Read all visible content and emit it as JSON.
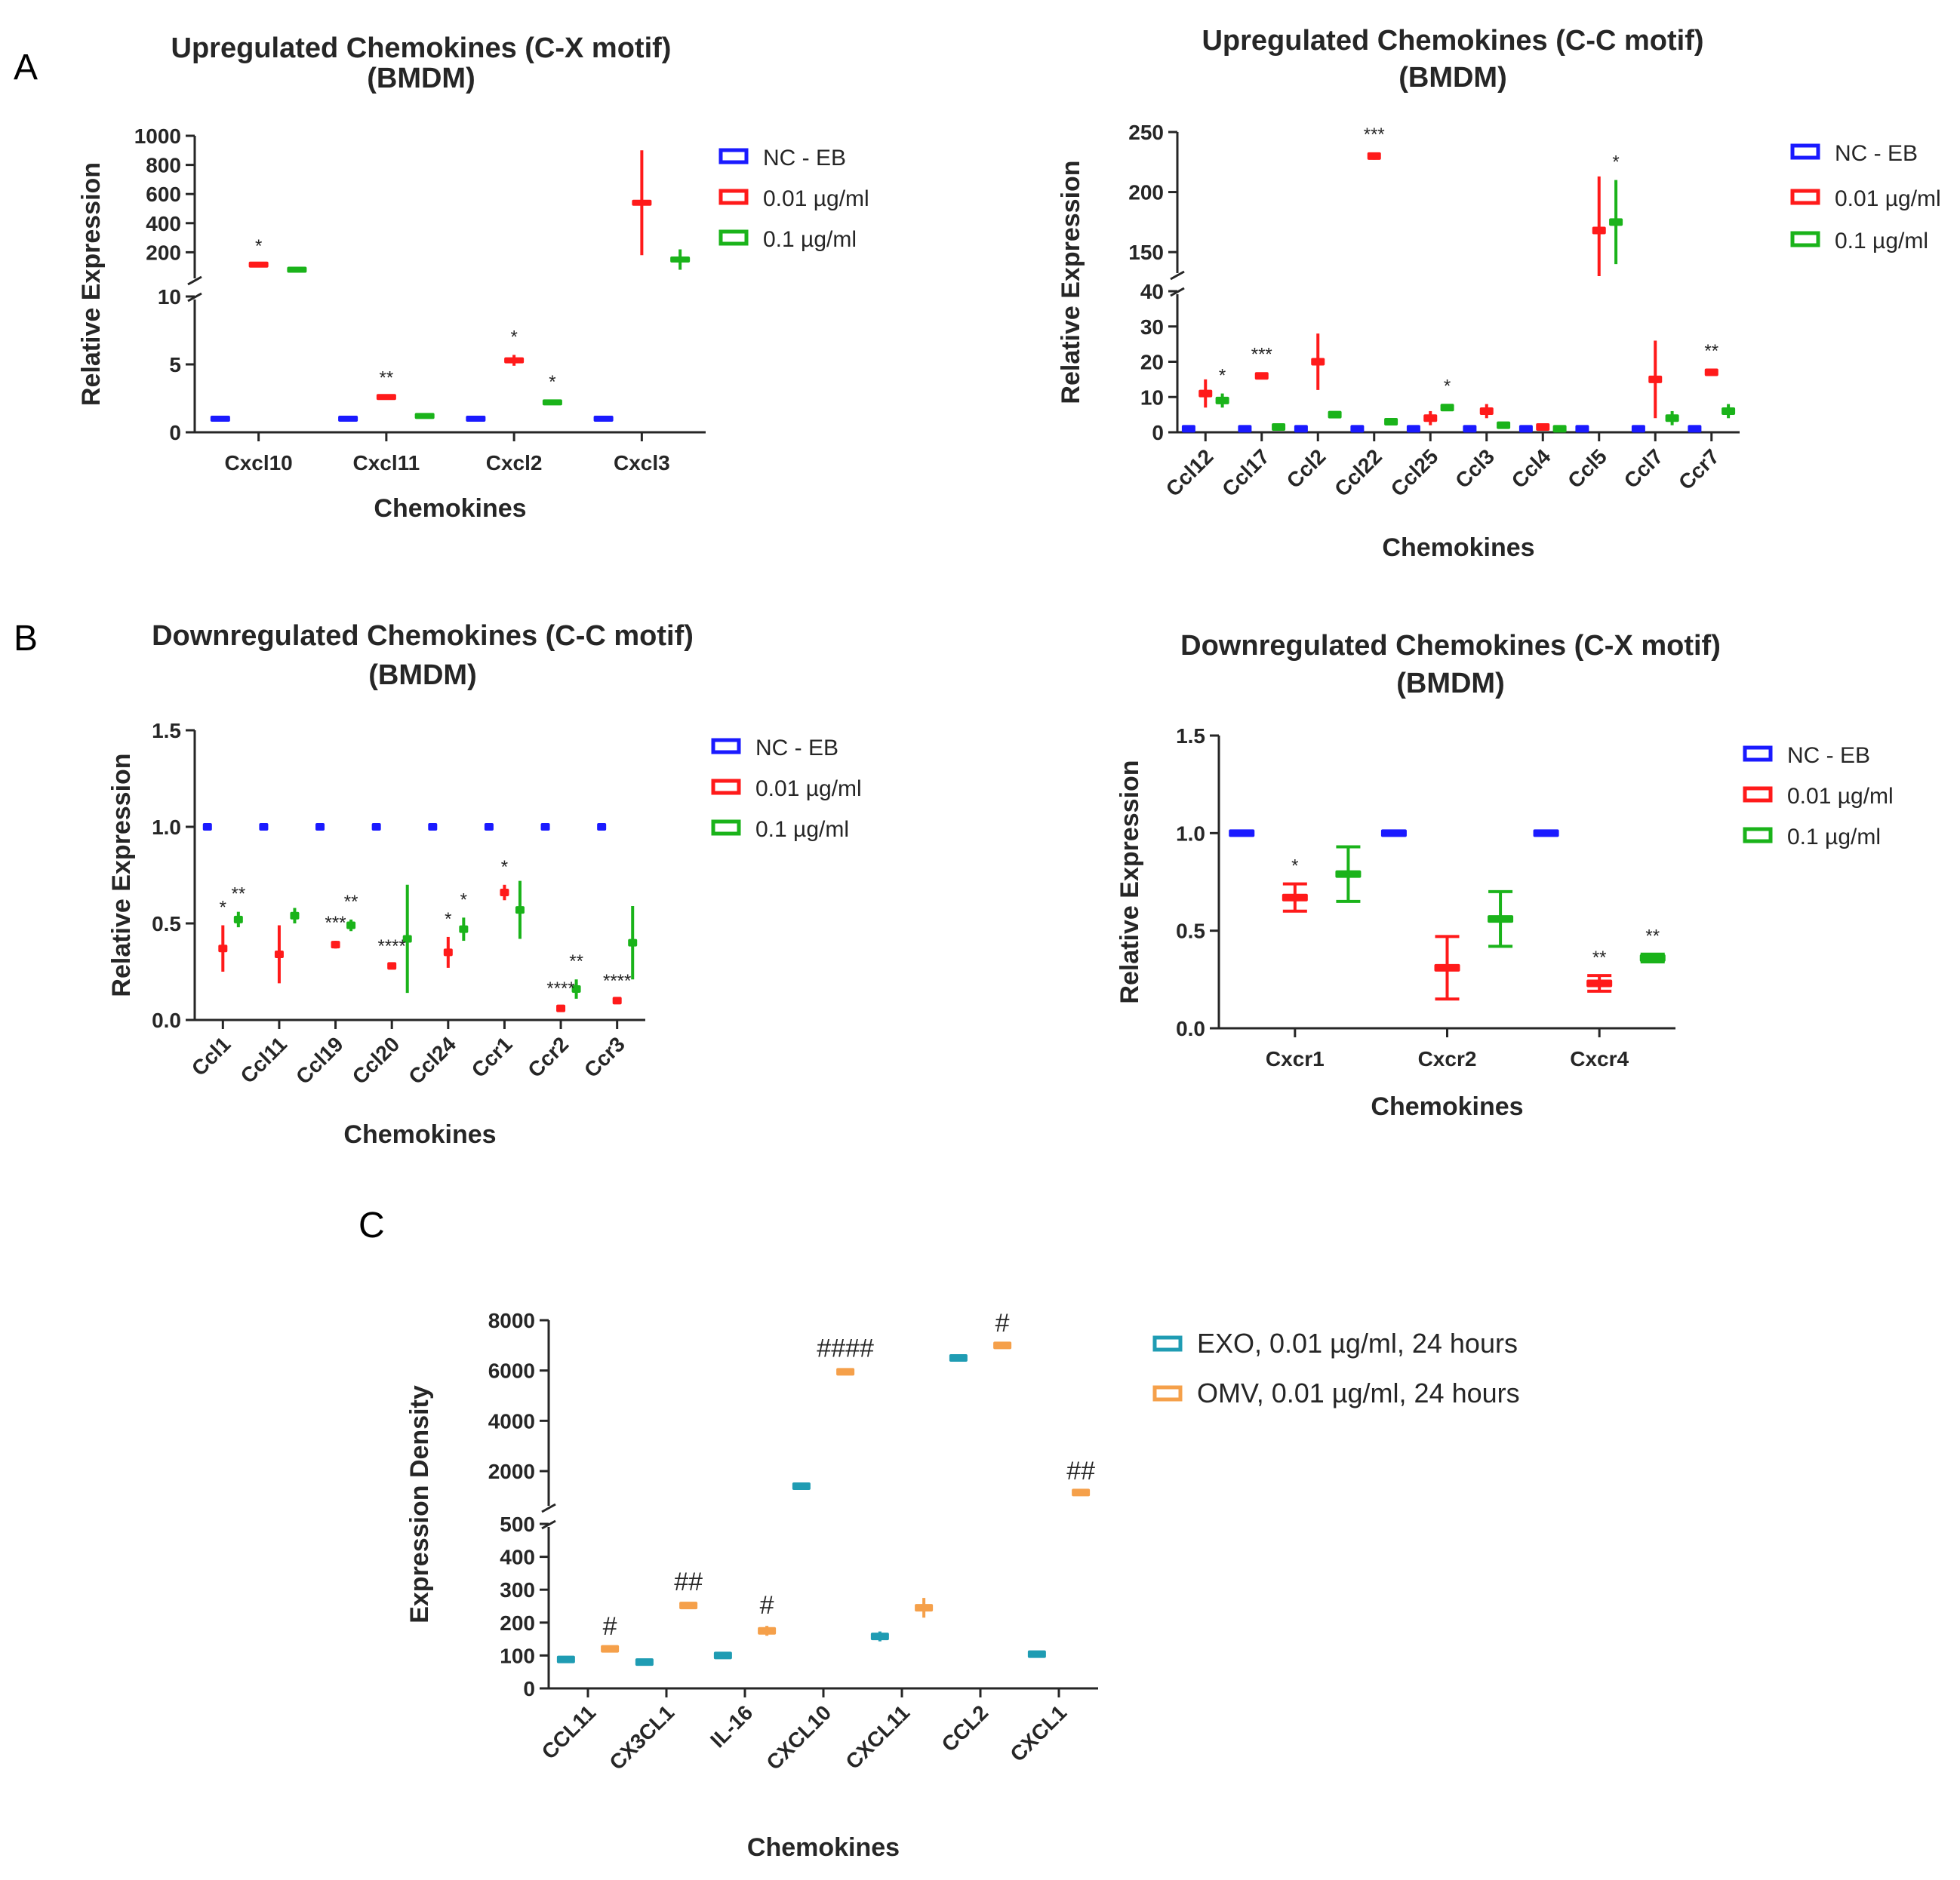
{
  "panel_labels": {
    "A": "A",
    "B": "B",
    "C": "C"
  },
  "chart_data": [
    {
      "id": "A1",
      "type": "scatter",
      "title": [
        "Upregulated Chemokines (C-X motif)",
        "(BMDM)"
      ],
      "xlabel": "Chemokines",
      "ylabel": "Relative Expression",
      "categories": [
        "Cxcl10",
        "Cxcl11",
        "Cxcl2",
        "Cxcl3"
      ],
      "axis_break": true,
      "ylim_lower": [
        0,
        10
      ],
      "yticks_lower": [
        "0",
        "5",
        "10"
      ],
      "ylim_upper": [
        0,
        1000
      ],
      "yticks_upper": [
        "200",
        "400",
        "600",
        "800",
        "1000"
      ],
      "legend": [
        "NC - EB",
        "0.01 µg/ml",
        "0.1 µg/ml"
      ],
      "colors": [
        "#1a1aff",
        "#ff1a1a",
        "#1ab31a"
      ],
      "series": [
        {
          "name": "NC - EB",
          "values": [
            1,
            1,
            1,
            1
          ],
          "err": [
            0,
            0,
            0,
            0
          ]
        },
        {
          "name": "0.01 µg/ml",
          "values": [
            115,
            2.6,
            5.3,
            540
          ],
          "err": [
            5,
            0.1,
            0.4,
            360
          ]
        },
        {
          "name": "0.1 µg/ml",
          "values": [
            80,
            1.2,
            2.2,
            150
          ],
          "err": [
            5,
            0.1,
            0.2,
            70
          ]
        }
      ],
      "significance": [
        {
          "cat": 0,
          "series": 1,
          "label": "*"
        },
        {
          "cat": 1,
          "series": 1,
          "label": "**"
        },
        {
          "cat": 2,
          "series": 1,
          "label": "*"
        },
        {
          "cat": 2,
          "series": 2,
          "label": "*"
        }
      ]
    },
    {
      "id": "A2",
      "type": "scatter",
      "title": [
        "Upregulated Chemokines (C-C motif)",
        "(BMDM)"
      ],
      "xlabel": "Chemokines",
      "ylabel": "Relative Expression",
      "categories": [
        "Ccl12",
        "Ccl17",
        "Ccl2",
        "Ccl22",
        "Ccl25",
        "Ccl3",
        "Ccl4",
        "Ccl5",
        "Ccl7",
        "Ccr7"
      ],
      "axis_break": true,
      "ylim_lower": [
        0,
        40
      ],
      "yticks_lower": [
        "0",
        "10",
        "20",
        "30",
        "40"
      ],
      "ylim_upper": [
        130,
        250
      ],
      "yticks_upper": [
        "150",
        "200",
        "250"
      ],
      "legend": [
        "NC - EB",
        "0.01 µg/ml",
        "0.1 µg/ml"
      ],
      "colors": [
        "#1a1aff",
        "#ff1a1a",
        "#1ab31a"
      ],
      "series": [
        {
          "name": "NC - EB",
          "values": [
            1,
            1,
            1,
            1,
            1,
            1,
            1,
            1,
            1,
            1
          ],
          "err": [
            0,
            0,
            0,
            0,
            0,
            0,
            0,
            0,
            0,
            0
          ]
        },
        {
          "name": "0.01 µg/ml",
          "values": [
            11,
            16,
            20,
            230,
            4,
            6,
            1.5,
            168,
            15,
            17
          ],
          "err": [
            4,
            1,
            8,
            3,
            2,
            2,
            0.3,
            45,
            11,
            1
          ]
        },
        {
          "name": "0.1 µg/ml",
          "values": [
            9,
            1.5,
            5,
            3,
            7,
            2,
            1,
            175,
            4,
            6
          ],
          "err": [
            2,
            0.3,
            1,
            1,
            1,
            0.5,
            0.3,
            35,
            2,
            2
          ]
        }
      ],
      "significance": [
        {
          "cat": 0,
          "series": 2,
          "label": "*"
        },
        {
          "cat": 1,
          "series": 1,
          "label": "***"
        },
        {
          "cat": 3,
          "series": 1,
          "label": "***"
        },
        {
          "cat": 4,
          "series": 2,
          "label": "*"
        },
        {
          "cat": 7,
          "series": 2,
          "label": "*"
        },
        {
          "cat": 9,
          "series": 1,
          "label": "**"
        }
      ]
    },
    {
      "id": "B1",
      "type": "scatter",
      "title": [
        "Downregulated Chemokines (C-C motif)",
        "(BMDM)"
      ],
      "xlabel": "Chemokines",
      "ylabel": "Relative Expression",
      "categories": [
        "Ccl1",
        "Ccl11",
        "Ccl19",
        "Ccl20",
        "Ccl24",
        "Ccr1",
        "Ccr2",
        "Ccr3"
      ],
      "axis_break": false,
      "ylim": [
        0,
        1.5
      ],
      "yticks": [
        "0.0",
        "0.5",
        "1.0",
        "1.5"
      ],
      "legend": [
        "NC - EB",
        "0.01 µg/ml",
        "0.1 µg/ml"
      ],
      "colors": [
        "#1a1aff",
        "#ff1a1a",
        "#1ab31a"
      ],
      "series": [
        {
          "name": "NC - EB",
          "values": [
            1,
            1,
            1,
            1,
            1,
            1,
            1,
            1
          ],
          "err": [
            0,
            0,
            0,
            0,
            0,
            0,
            0,
            0
          ]
        },
        {
          "name": "0.01 µg/ml",
          "values": [
            0.37,
            0.34,
            0.39,
            0.28,
            0.35,
            0.66,
            0.06,
            0.1
          ],
          "err": [
            0.12,
            0.15,
            0.02,
            0.01,
            0.08,
            0.04,
            0.01,
            0.01
          ]
        },
        {
          "name": "0.1 µg/ml",
          "values": [
            0.52,
            0.54,
            0.49,
            0.42,
            0.47,
            0.57,
            0.16,
            0.4
          ],
          "err": [
            0.04,
            0.04,
            0.03,
            0.28,
            0.06,
            0.15,
            0.05,
            0.19
          ]
        }
      ],
      "significance": [
        {
          "cat": 0,
          "series": 1,
          "label": "*"
        },
        {
          "cat": 0,
          "series": 2,
          "label": "**"
        },
        {
          "cat": 2,
          "series": 1,
          "label": "***"
        },
        {
          "cat": 2,
          "series": 2,
          "label": "**"
        },
        {
          "cat": 3,
          "series": 1,
          "label": "****"
        },
        {
          "cat": 4,
          "series": 1,
          "label": "*"
        },
        {
          "cat": 4,
          "series": 2,
          "label": "*"
        },
        {
          "cat": 5,
          "series": 1,
          "label": "*"
        },
        {
          "cat": 6,
          "series": 1,
          "label": "****"
        },
        {
          "cat": 6,
          "series": 2,
          "label": "**"
        },
        {
          "cat": 7,
          "series": 1,
          "label": "****"
        }
      ]
    },
    {
      "id": "B2",
      "type": "scatter",
      "title": [
        "Downregulated Chemokines (C-X motif)",
        "(BMDM)"
      ],
      "xlabel": "Chemokines",
      "ylabel": "Relative Expression",
      "categories": [
        "Cxcr1",
        "Cxcr2",
        "Cxcr4"
      ],
      "axis_break": false,
      "ylim": [
        0,
        1.5
      ],
      "yticks": [
        "0.0",
        "0.5",
        "1.0",
        "1.5"
      ],
      "legend": [
        "NC - EB",
        "0.01 µg/ml",
        "0.1 µg/ml"
      ],
      "colors": [
        "#1a1aff",
        "#ff1a1a",
        "#1ab31a"
      ],
      "series": [
        {
          "name": "NC - EB",
          "values": [
            1,
            1,
            1
          ],
          "err": [
            0,
            0,
            0
          ]
        },
        {
          "name": "0.01 µg/ml",
          "values": [
            0.67,
            0.31,
            0.23
          ],
          "err": [
            0.07,
            0.16,
            0.04
          ]
        },
        {
          "name": "0.1 µg/ml",
          "values": [
            0.79,
            0.56,
            0.36
          ],
          "err": [
            0.14,
            0.14,
            0.02
          ]
        }
      ],
      "significance": [
        {
          "cat": 0,
          "series": 1,
          "label": "*"
        },
        {
          "cat": 2,
          "series": 1,
          "label": "**"
        },
        {
          "cat": 2,
          "series": 2,
          "label": "**"
        }
      ]
    },
    {
      "id": "C",
      "type": "scatter",
      "title": [],
      "xlabel": "Chemokines",
      "ylabel": "Expression Density",
      "categories": [
        "CCL11",
        "CX3CL1",
        "IL-16",
        "CXCL10",
        "CXCL11",
        "CCL2",
        "CXCL1"
      ],
      "axis_break": true,
      "ylim_lower": [
        0,
        500
      ],
      "yticks_lower": [
        "0",
        "100",
        "200",
        "300",
        "400",
        "500"
      ],
      "ylim_upper": [
        500,
        8000
      ],
      "yticks_upper": [
        "2000",
        "4000",
        "6000",
        "8000"
      ],
      "legend": [
        "EXO, 0.01 µg/ml, 24 hours",
        "OMV, 0.01 µg/ml, 24 hours"
      ],
      "colors": [
        "#1f9cb3",
        "#f5a04a"
      ],
      "series": [
        {
          "name": "EXO, 0.01 µg/ml, 24 hours",
          "values": [
            88,
            80,
            100,
            1400,
            158,
            6500,
            104
          ],
          "err": [
            5,
            4,
            8,
            50,
            15,
            60,
            5
          ]
        },
        {
          "name": "OMV, 0.01 µg/ml, 24 hours",
          "values": [
            120,
            252,
            175,
            5950,
            245,
            7000,
            1150
          ],
          "err": [
            6,
            10,
            15,
            120,
            30,
            70,
            40
          ]
        }
      ],
      "significance": [
        {
          "cat": 0,
          "series": 1,
          "label": "#"
        },
        {
          "cat": 1,
          "series": 1,
          "label": "##"
        },
        {
          "cat": 2,
          "series": 1,
          "label": "#"
        },
        {
          "cat": 3,
          "series": 1,
          "label": "####"
        },
        {
          "cat": 5,
          "series": 1,
          "label": "#"
        },
        {
          "cat": 6,
          "series": 1,
          "label": "##"
        }
      ]
    }
  ]
}
